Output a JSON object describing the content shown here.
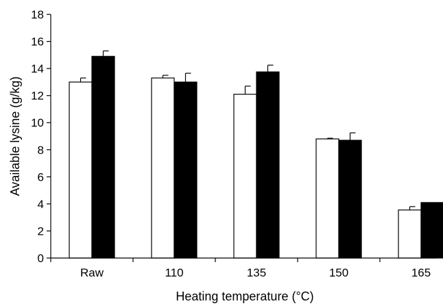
{
  "chart_data": {
    "type": "bar",
    "title": "",
    "xlabel": "Heating temperature (°C)",
    "ylabel": "Available lysine (g/kg)",
    "categories": [
      "Raw",
      "110",
      "135",
      "150",
      "165"
    ],
    "ylim": [
      0,
      18
    ],
    "yticks": [
      0,
      2,
      4,
      6,
      8,
      10,
      12,
      14,
      16,
      18
    ],
    "grid": false,
    "legend": "none",
    "series": [
      {
        "fill": "#ffffff",
        "values": [
          13.0,
          13.3,
          12.1,
          8.8,
          3.55
        ],
        "errors": [
          0.3,
          0.2,
          0.6,
          0.05,
          0.25
        ]
      },
      {
        "fill": "#000000",
        "values": [
          14.9,
          13.0,
          13.75,
          8.7,
          4.1
        ],
        "errors": [
          0.4,
          0.65,
          0.5,
          0.55,
          0.0
        ]
      }
    ]
  }
}
